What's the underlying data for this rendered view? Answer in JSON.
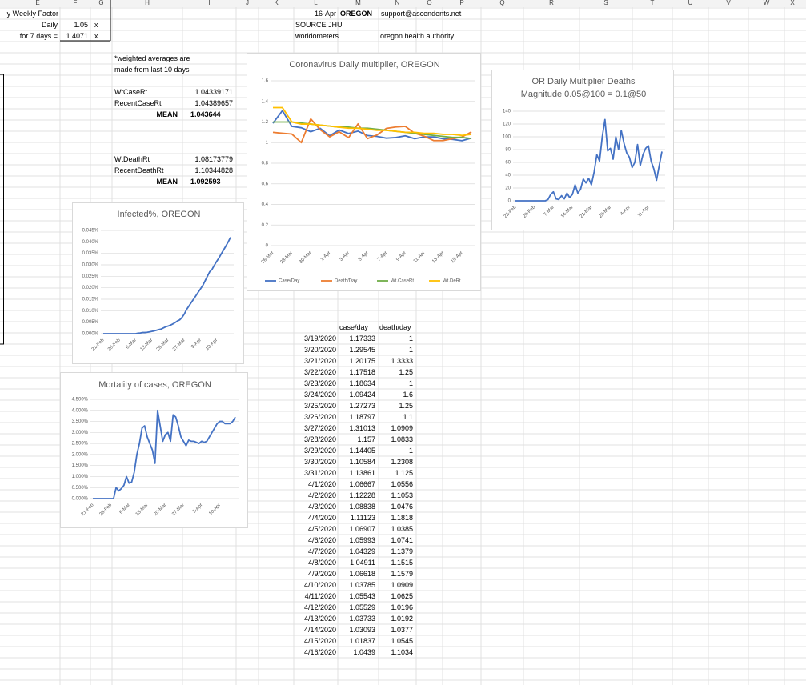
{
  "columns": [
    "E",
    "F",
    "G",
    "H",
    "I",
    "J",
    "K",
    "L",
    "M",
    "N",
    "O",
    "P",
    "Q",
    "R",
    "S",
    "T",
    "U",
    "V",
    "W",
    "X"
  ],
  "factors": {
    "title": "y Weekly Factor",
    "daily_label": "Daily",
    "daily": 1.05,
    "daily_unit": "x",
    "week_label": "for 7 days =",
    "week": 1.4071,
    "week_unit": "x"
  },
  "header": {
    "date": "16-Apr",
    "state": "OREGON",
    "email": "support@ascendents.net",
    "source": "SOURCE JHU",
    "site1": "worldometers",
    "site2": "oregon health authority"
  },
  "note": [
    "*weighted averages are",
    "made from last 10 days"
  ],
  "rates": {
    "wt_case_label": "WtCaseRt",
    "wt_case": 1.04339171,
    "recent_case_label": "RecentCaseRt",
    "recent_case": 1.04389657,
    "mean_case_label": "MEAN",
    "mean_case": 1.043644,
    "wt_death_label": "WtDeathRt",
    "wt_death": 1.08173779,
    "recent_death_label": "RecentDeathRt",
    "recent_death": 1.10344828,
    "mean_death_label": "MEAN",
    "mean_death": 1.092593
  },
  "table": {
    "headers": [
      "case/day",
      "death/day"
    ],
    "rows": [
      [
        "3/19/2020",
        1.17333,
        1
      ],
      [
        "3/20/2020",
        1.29545,
        1
      ],
      [
        "3/21/2020",
        1.20175,
        1.3333
      ],
      [
        "3/22/2020",
        1.17518,
        1.25
      ],
      [
        "3/23/2020",
        1.18634,
        1
      ],
      [
        "3/24/2020",
        1.09424,
        1.6
      ],
      [
        "3/25/2020",
        1.27273,
        1.25
      ],
      [
        "3/26/2020",
        1.18797,
        1.1
      ],
      [
        "3/27/2020",
        1.31013,
        1.0909
      ],
      [
        "3/28/2020",
        1.157,
        1.0833
      ],
      [
        "3/29/2020",
        1.14405,
        1
      ],
      [
        "3/30/2020",
        1.10584,
        1.2308
      ],
      [
        "3/31/2020",
        1.13861,
        1.125
      ],
      [
        "4/1/2020",
        1.06667,
        1.0556
      ],
      [
        "4/2/2020",
        1.12228,
        1.1053
      ],
      [
        "4/3/2020",
        1.08838,
        1.0476
      ],
      [
        "4/4/2020",
        1.11123,
        1.1818
      ],
      [
        "4/5/2020",
        1.06907,
        1.0385
      ],
      [
        "4/6/2020",
        1.05993,
        1.0741
      ],
      [
        "4/7/2020",
        1.04329,
        1.1379
      ],
      [
        "4/8/2020",
        1.04911,
        1.1515
      ],
      [
        "4/9/2020",
        1.06618,
        1.1579
      ],
      [
        "4/10/2020",
        1.03785,
        1.0909
      ],
      [
        "4/11/2020",
        1.05543,
        1.0625
      ],
      [
        "4/12/2020",
        1.05529,
        1.0196
      ],
      [
        "4/13/2020",
        1.03733,
        1.0192
      ],
      [
        "4/14/2020",
        1.03093,
        1.0377
      ],
      [
        "4/15/2020",
        1.01837,
        1.0545
      ],
      [
        "4/16/2020",
        1.0439,
        1.1034
      ]
    ]
  },
  "chart_data": [
    {
      "type": "line",
      "title": "Coronavirus Daily multiplier, OREGON",
      "categories": [
        "26-Mar",
        null,
        "28-Mar",
        null,
        "30-Mar",
        null,
        "1-Apr",
        null,
        "3-Apr",
        null,
        "5-Apr",
        null,
        "7-Apr",
        null,
        "9-Apr",
        null,
        "11-Apr",
        null,
        "13-Apr",
        null,
        "15-Apr",
        null
      ],
      "ylim": [
        0,
        1.6
      ],
      "yticks": [
        0,
        0.2,
        0.4,
        0.6,
        0.8,
        1,
        1.2,
        1.4,
        1.6
      ],
      "grid": true,
      "legend": "bottom",
      "series": [
        {
          "name": "Case/Day",
          "color": "#4472c4",
          "values": [
            1.18797,
            1.31013,
            1.157,
            1.14405,
            1.10584,
            1.13861,
            1.06667,
            1.12228,
            1.08838,
            1.11123,
            1.06907,
            1.05993,
            1.04329,
            1.04911,
            1.06618,
            1.03785,
            1.05543,
            1.05529,
            1.03733,
            1.03093,
            1.01837,
            1.0439
          ]
        },
        {
          "name": "Death/Day",
          "color": "#ed7d31",
          "values": [
            1.1,
            1.0909,
            1.0833,
            1,
            1.2308,
            1.125,
            1.0556,
            1.1053,
            1.0476,
            1.1818,
            1.0385,
            1.0741,
            1.1379,
            1.1515,
            1.1579,
            1.0909,
            1.0625,
            1.0196,
            1.0192,
            1.0377,
            1.0545,
            1.1034
          ]
        },
        {
          "name": "Wt.CaseRt",
          "color": "#70ad47",
          "values": [
            1.2,
            1.2,
            1.2,
            1.19,
            1.18,
            1.17,
            1.16,
            1.15,
            1.15,
            1.14,
            1.14,
            1.13,
            1.12,
            1.11,
            1.1,
            1.09,
            1.08,
            1.07,
            1.06,
            1.05,
            1.05,
            1.04
          ]
        },
        {
          "name": "Wt.DeRt",
          "color": "#ffc000",
          "values": [
            1.34,
            1.34,
            1.2,
            1.18,
            1.18,
            1.17,
            1.16,
            1.15,
            1.14,
            1.14,
            1.13,
            1.12,
            1.12,
            1.11,
            1.1,
            1.1,
            1.09,
            1.09,
            1.08,
            1.08,
            1.07,
            1.08
          ]
        }
      ]
    },
    {
      "type": "line",
      "title": "OR Daily Multiplier Deaths",
      "subtitle": "Magnitude 0.05@100 = 0.1@50",
      "color": "#4472c4",
      "categories": [
        "22-Feb",
        null,
        null,
        null,
        null,
        null,
        null,
        "29-Feb",
        null,
        null,
        null,
        null,
        null,
        null,
        "7-Mar",
        null,
        null,
        null,
        null,
        null,
        null,
        "14-Mar",
        null,
        null,
        null,
        null,
        null,
        null,
        "21-Mar",
        null,
        null,
        null,
        null,
        null,
        null,
        "28-Mar",
        null,
        null,
        null,
        null,
        null,
        null,
        "4-Apr",
        null,
        null,
        null,
        null,
        null,
        null,
        "11-Apr",
        null,
        null,
        null,
        null,
        null
      ],
      "values": [
        0,
        0,
        0,
        0,
        0,
        0,
        0,
        0,
        0,
        0,
        0,
        0,
        2,
        10,
        14,
        3,
        2,
        8,
        3,
        12,
        5,
        10,
        25,
        12,
        18,
        34,
        28,
        35,
        25,
        45,
        72,
        62,
        100,
        127,
        78,
        82,
        65,
        100,
        80,
        110,
        90,
        75,
        68,
        52,
        60,
        88,
        55,
        72,
        82,
        86,
        62,
        50,
        32,
        55,
        77
      ],
      "ylim": [
        0,
        140
      ],
      "yticks": [
        0,
        20,
        40,
        60,
        80,
        100,
        120,
        140
      ],
      "grid": true
    },
    {
      "type": "line",
      "title": "Infected%, OREGON",
      "color": "#4472c4",
      "categories": [
        "21-Feb",
        null,
        null,
        null,
        null,
        null,
        null,
        "28-Feb",
        null,
        null,
        null,
        null,
        null,
        null,
        "6-Mar",
        null,
        null,
        null,
        null,
        null,
        null,
        "13-Mar",
        null,
        null,
        null,
        null,
        null,
        null,
        "20-Mar",
        null,
        null,
        null,
        null,
        null,
        null,
        "27-Mar",
        null,
        null,
        null,
        null,
        null,
        null,
        "3-Apr",
        null,
        null,
        null,
        null,
        null,
        null,
        "10-Apr",
        null,
        null,
        null,
        null,
        null,
        null
      ],
      "values": [
        0,
        0,
        0,
        0,
        0,
        0,
        0,
        0,
        0,
        0,
        0,
        0,
        0,
        0,
        0,
        0.0002,
        0.0003,
        0.0005,
        0.0005,
        0.0006,
        0.0008,
        0.001,
        0.0012,
        0.0015,
        0.0018,
        0.002,
        0.0025,
        0.003,
        0.0033,
        0.0037,
        0.0042,
        0.0048,
        0.0055,
        0.006,
        0.007,
        0.0085,
        0.0105,
        0.012,
        0.0135,
        0.015,
        0.0165,
        0.018,
        0.0195,
        0.021,
        0.023,
        0.025,
        0.027,
        0.028,
        0.0298,
        0.0315,
        0.033,
        0.0348,
        0.0365,
        0.0382,
        0.04,
        0.042
      ],
      "ylim": [
        0,
        0.045
      ],
      "yticks": [
        {
          "value": 0,
          "label": "0.000%"
        },
        {
          "value": 0.005,
          "label": "0.005%"
        },
        {
          "value": 0.01,
          "label": "0.010%"
        },
        {
          "value": 0.015,
          "label": "0.015%"
        },
        {
          "value": 0.02,
          "label": "0.020%"
        },
        {
          "value": 0.025,
          "label": "0.025%"
        },
        {
          "value": 0.03,
          "label": "0.030%"
        },
        {
          "value": 0.035,
          "label": "0.035%"
        },
        {
          "value": 0.04,
          "label": "0.040%"
        },
        {
          "value": 0.045,
          "label": "0.045%"
        }
      ],
      "grid": true
    },
    {
      "type": "line",
      "title": "Mortality of cases, OREGON",
      "color": "#4472c4",
      "categories": [
        "21-Feb",
        null,
        null,
        null,
        null,
        null,
        null,
        "28-Feb",
        null,
        null,
        null,
        null,
        null,
        null,
        "6-Mar",
        null,
        null,
        null,
        null,
        null,
        null,
        "13-Mar",
        null,
        null,
        null,
        null,
        null,
        null,
        "20-Mar",
        null,
        null,
        null,
        null,
        null,
        null,
        "27-Mar",
        null,
        null,
        null,
        null,
        null,
        null,
        "3-Apr",
        null,
        null,
        null,
        null,
        null,
        null,
        "10-Apr",
        null,
        null,
        null,
        null,
        null,
        null
      ],
      "values": [
        0,
        0,
        0,
        0,
        0,
        0,
        0,
        0,
        0,
        0.5,
        0.35,
        0.45,
        0.6,
        1,
        0.7,
        0.75,
        1.2,
        2,
        2.5,
        3.2,
        3.3,
        2.8,
        2.5,
        2.2,
        1.6,
        4,
        3.3,
        2.6,
        2.9,
        3,
        2.6,
        3.8,
        3.7,
        3.3,
        2.8,
        2.6,
        2.4,
        2.65,
        2.6,
        2.6,
        2.55,
        2.5,
        2.6,
        2.55,
        2.6,
        2.8,
        3,
        3.2,
        3.4,
        3.5,
        3.5,
        3.4,
        3.4,
        3.4,
        3.5,
        3.7
      ],
      "ylim": [
        0,
        4.5
      ],
      "yticks": [
        {
          "value": 0,
          "label": "0.000%"
        },
        {
          "value": 0.5,
          "label": "0.500%"
        },
        {
          "value": 1,
          "label": "1.000%"
        },
        {
          "value": 1.5,
          "label": "1.500%"
        },
        {
          "value": 2,
          "label": "2.000%"
        },
        {
          "value": 2.5,
          "label": "2.500%"
        },
        {
          "value": 3,
          "label": "3.000%"
        },
        {
          "value": 3.5,
          "label": "3.500%"
        },
        {
          "value": 4,
          "label": "4.000%"
        },
        {
          "value": 4.5,
          "label": "4.500%"
        }
      ],
      "grid": true
    }
  ]
}
